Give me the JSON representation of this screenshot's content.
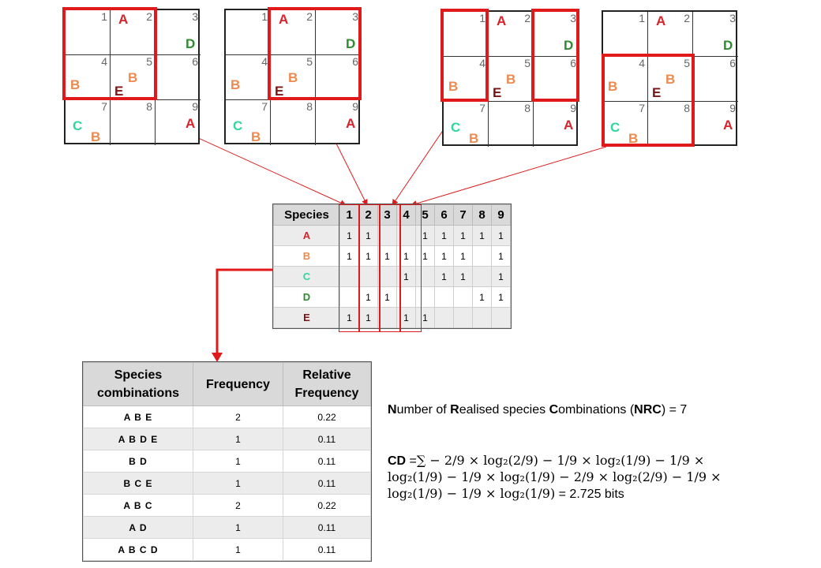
{
  "species_colors": {
    "A": "#d9232b",
    "B": "#ef8a4f",
    "C": "#2fd6a0",
    "D": "#2e8b2e",
    "E": "#7a1414"
  },
  "highlight_color": "#e01a1a",
  "grid_cell_numbers": [
    "1",
    "2",
    "3",
    "4",
    "5",
    "6",
    "7",
    "8",
    "9"
  ],
  "grid_species_labels": {
    "a": "A",
    "b": "B",
    "c": "C",
    "d": "D",
    "e": "E"
  },
  "species_table": {
    "header": "Species",
    "columns": [
      "1",
      "2",
      "3",
      "4",
      "5",
      "6",
      "7",
      "8",
      "9"
    ],
    "rows": [
      {
        "species": "A",
        "values": [
          "1",
          "1",
          "",
          "",
          "1",
          "1",
          "1",
          "1",
          "1"
        ]
      },
      {
        "species": "B",
        "values": [
          "1",
          "1",
          "1",
          "1",
          "1",
          "1",
          "1",
          "",
          "1"
        ]
      },
      {
        "species": "C",
        "values": [
          "",
          "",
          "",
          "1",
          "",
          "1",
          "1",
          "",
          "1"
        ]
      },
      {
        "species": "D",
        "values": [
          "",
          "1",
          "1",
          "",
          "",
          "",
          "",
          "1",
          "1"
        ]
      },
      {
        "species": "E",
        "values": [
          "1",
          "1",
          "",
          "1",
          "1",
          "",
          "",
          "",
          ""
        ]
      }
    ]
  },
  "combinations_table": {
    "headers": {
      "combos_line1": "Species",
      "combos_line2": "combinations",
      "frequency": "Frequency",
      "rel_line1": "Relative",
      "rel_line2": "Frequency"
    },
    "rows": [
      {
        "combo": "A B E",
        "frequency": "2",
        "relative": "0.22"
      },
      {
        "combo": "A B D E",
        "frequency": "1",
        "relative": "0.11"
      },
      {
        "combo": "B D",
        "frequency": "1",
        "relative": "0.11"
      },
      {
        "combo": "B C E",
        "frequency": "1",
        "relative": "0.11"
      },
      {
        "combo": "A B C",
        "frequency": "2",
        "relative": "0.22"
      },
      {
        "combo": "A D",
        "frequency": "1",
        "relative": "0.11"
      },
      {
        "combo": "A B C D",
        "frequency": "1",
        "relative": "0.11"
      }
    ]
  },
  "nrc": {
    "n": "N",
    "t1": "umber of ",
    "r": "R",
    "t2": "ealised species ",
    "c": "C",
    "t3": "ombinations (",
    "abbr": "NRC",
    "t4": ") = 7"
  },
  "cd": {
    "label": "CD",
    "eq": " =",
    "line1": "∑ − 2/9 × log₂(2/9) − 1/9 × log₂(1/9) − 1/9 ×",
    "line2": "log₂(1/9) − 1/9 × log₂(1/9) − 2/9 × log₂(2/9) − 1/9 ×",
    "line3": "log₂(1/9) − 1/9 × log₂(1/9)",
    "result": " = 2.725 bits"
  }
}
